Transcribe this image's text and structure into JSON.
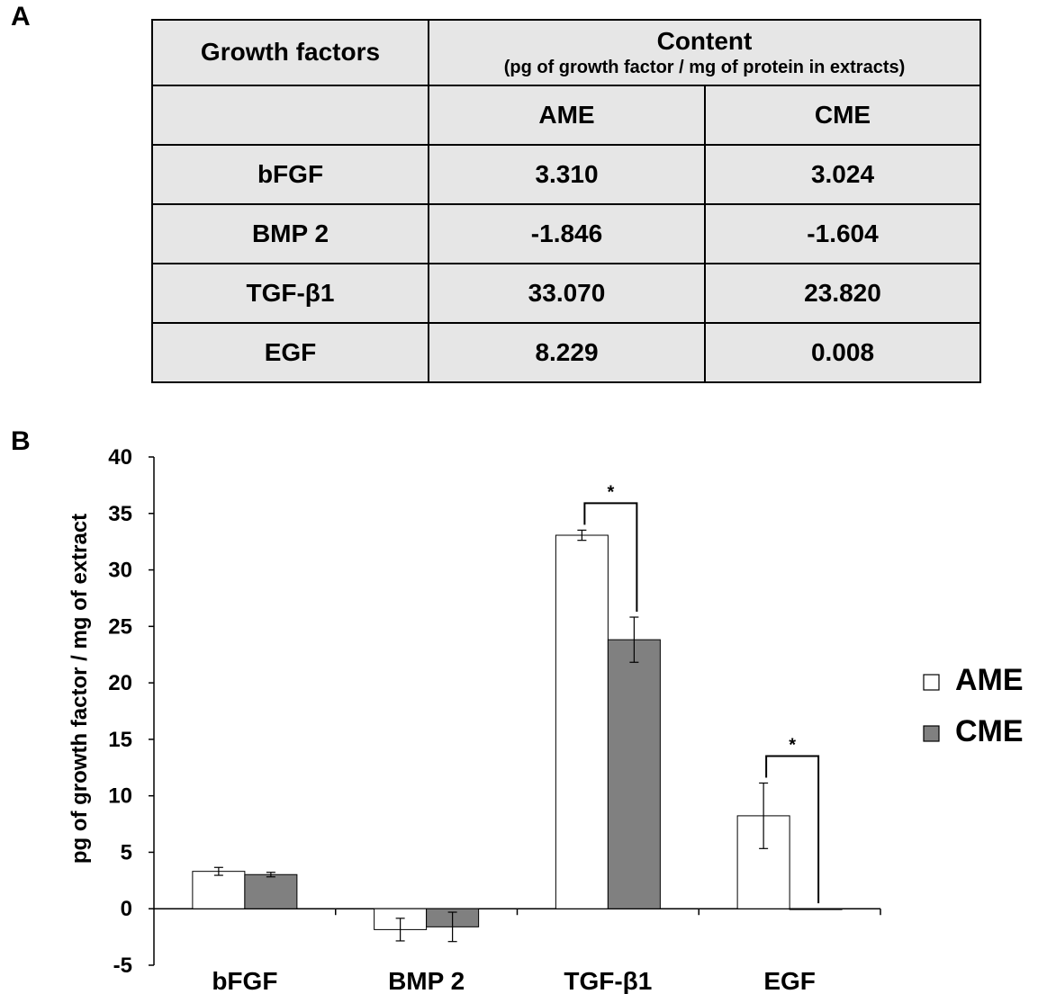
{
  "panel_a": {
    "label": "A",
    "table": {
      "header": {
        "col1": "Growth factors",
        "content_title": "Content",
        "content_subtitle": "(pg of growth factor / mg of protein in extracts)",
        "sub_cols": [
          "AME",
          "CME"
        ]
      },
      "rows": [
        {
          "name": "bFGF",
          "ame": "3.310",
          "cme": "3.024"
        },
        {
          "name": "BMP 2",
          "ame": "-1.846",
          "cme": "-1.604"
        },
        {
          "name": "TGF-β1",
          "ame": "33.070",
          "cme": "23.820"
        },
        {
          "name": "EGF",
          "ame": "8.229",
          "cme": "0.008"
        }
      ]
    }
  },
  "panel_b": {
    "label": "B"
  },
  "chart_data": {
    "type": "bar",
    "categories": [
      "bFGF",
      "BMP 2",
      "TGF-β1",
      "EGF"
    ],
    "series": [
      {
        "name": "AME",
        "color": "#ffffff",
        "values": [
          3.31,
          -1.846,
          33.07,
          8.229
        ],
        "errors": [
          0.35,
          1.0,
          0.45,
          2.9
        ]
      },
      {
        "name": "CME",
        "color": "#808080",
        "values": [
          3.024,
          -1.604,
          23.82,
          0.008
        ],
        "errors": [
          0.2,
          1.3,
          2.0,
          0.0
        ]
      }
    ],
    "ylabel": "pg of growth factor / mg of extract",
    "xlabel": "",
    "ylim": [
      -5,
      40
    ],
    "yticks": [
      -5,
      0,
      5,
      10,
      15,
      20,
      25,
      30,
      35,
      40
    ],
    "legend": "right",
    "annotations": [
      {
        "category": "TGF-β1",
        "text": "*"
      },
      {
        "category": "EGF",
        "text": "*"
      }
    ]
  }
}
